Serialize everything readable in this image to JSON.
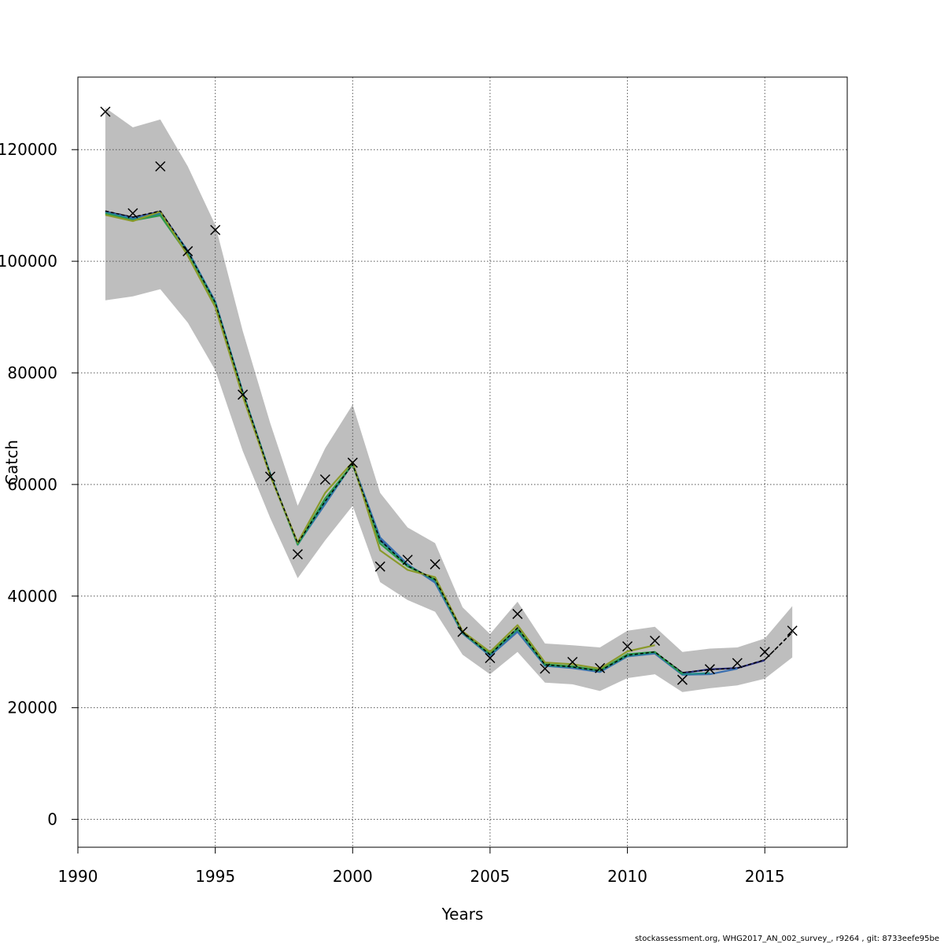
{
  "chart_data": {
    "type": "line",
    "title": "",
    "xlabel": "Years",
    "ylabel": "Catch",
    "xlim": [
      1990,
      2018
    ],
    "ylim": [
      -5000,
      133000
    ],
    "xticks": [
      1990,
      1995,
      2000,
      2005,
      2010,
      2015
    ],
    "yticks": [
      0,
      20000,
      40000,
      60000,
      80000,
      100000,
      120000
    ],
    "grid": true,
    "legend": "none",
    "colors": {
      "band": "#bebebe",
      "observed": "#000000",
      "series": [
        "#000000",
        "#2a2d7c",
        "#3a6fb0",
        "#1f8a8a",
        "#2c9a4a",
        "#8a9a2a"
      ]
    },
    "confidence_band": {
      "x": [
        1991,
        1992,
        1993,
        1994,
        1995,
        1996,
        1997,
        1998,
        1999,
        2000,
        2001,
        2002,
        2003,
        2004,
        2005,
        2006,
        2007,
        2008,
        2009,
        2010,
        2011,
        2012,
        2013,
        2014,
        2015,
        2016
      ],
      "lower": [
        93000,
        93700,
        95000,
        89000,
        80500,
        66000,
        54000,
        43200,
        50000,
        56200,
        42500,
        39300,
        37200,
        29500,
        26000,
        30000,
        24500,
        24200,
        23000,
        25300,
        26000,
        22800,
        23500,
        24000,
        25200,
        29000
      ],
      "upper": [
        127500,
        124000,
        125400,
        117000,
        106500,
        87500,
        71000,
        56200,
        66500,
        74300,
        58500,
        52300,
        49500,
        38000,
        33200,
        39000,
        31500,
        31200,
        30800,
        33800,
        34500,
        30000,
        30600,
        30800,
        32400,
        38200
      ]
    },
    "observed": {
      "x": [
        1991,
        1992,
        1993,
        1994,
        1995,
        1996,
        1997,
        1998,
        1999,
        2000,
        2001,
        2002,
        2003,
        2004,
        2005,
        2006,
        2007,
        2008,
        2009,
        2010,
        2011,
        2012,
        2013,
        2014,
        2015,
        2016
      ],
      "y": [
        126800,
        108600,
        117000,
        101800,
        105600,
        76100,
        61400,
        47500,
        60900,
        63900,
        45300,
        46500,
        45700,
        33600,
        28900,
        36800,
        27000,
        28200,
        27100,
        31000,
        32000,
        25000,
        26900,
        28000,
        30000,
        33800
      ]
    },
    "series": [
      {
        "x": [
          1991,
          1992,
          1993,
          1994,
          1995,
          1996,
          1997,
          1998,
          1999,
          2000,
          2001,
          2002,
          2003,
          2004,
          2005,
          2006,
          2007,
          2008,
          2009,
          2010,
          2011,
          2012,
          2013,
          2014,
          2015,
          2016
        ],
        "values": [
          109000,
          107900,
          109000,
          101800,
          92600,
          76500,
          61800,
          49500,
          57000,
          63600,
          50000,
          45400,
          43000,
          33600,
          29500,
          34300,
          27700,
          27300,
          26600,
          29400,
          30000,
          26300,
          26800,
          27100,
          28600,
          33500
        ]
      },
      {
        "x": [
          1991,
          1992,
          1993,
          1994,
          1995,
          1996,
          1997,
          1998,
          1999,
          2000,
          2001,
          2002,
          2003,
          2004,
          2005,
          2006,
          2007,
          2008,
          2009,
          2010,
          2011,
          2012,
          2013,
          2014,
          2015
        ],
        "values": [
          108900,
          107800,
          108900,
          101800,
          92700,
          76500,
          61800,
          49400,
          56800,
          63700,
          50300,
          45600,
          42700,
          33400,
          29400,
          33800,
          27600,
          27200,
          26500,
          29300,
          29800,
          26200,
          26900,
          27100,
          28500
        ]
      },
      {
        "x": [
          1991,
          1992,
          1993,
          1994,
          1995,
          1996,
          1997,
          1998,
          1999,
          2000,
          2001,
          2002,
          2003,
          2004,
          2005,
          2006,
          2007,
          2008,
          2009,
          2010,
          2011,
          2012,
          2013,
          2014
        ],
        "values": [
          108800,
          107700,
          108700,
          101900,
          92800,
          76600,
          61900,
          49300,
          56500,
          63800,
          50500,
          45700,
          42400,
          33300,
          29300,
          33600,
          27500,
          27100,
          26400,
          29200,
          29700,
          25900,
          26000,
          27000
        ]
      },
      {
        "x": [
          1991,
          1992,
          1993,
          1994,
          1995,
          1996,
          1997,
          1998,
          1999,
          2000,
          2001,
          2002,
          2003,
          2004,
          2005,
          2006,
          2007,
          2008,
          2009,
          2010,
          2011,
          2012,
          2013
        ],
        "values": [
          108700,
          107500,
          108400,
          101700,
          92600,
          76500,
          61900,
          49200,
          56900,
          63700,
          49900,
          45500,
          42800,
          33400,
          29500,
          34000,
          27600,
          27300,
          26600,
          29300,
          29900,
          26000,
          26200
        ]
      },
      {
        "x": [
          1991,
          1992,
          1993,
          1994,
          1995,
          1996,
          1997,
          1998,
          1999,
          2000,
          2001,
          2002,
          2003,
          2004,
          2005,
          2006,
          2007,
          2008,
          2009,
          2010,
          2011,
          2012
        ],
        "values": [
          108500,
          107300,
          108200,
          101200,
          92200,
          76200,
          61700,
          49300,
          57500,
          63600,
          49400,
          45300,
          43000,
          33500,
          29700,
          34200,
          27800,
          27400,
          26700,
          29600,
          30000,
          26100
        ]
      },
      {
        "x": [
          1991,
          1992,
          1993,
          1994,
          1995,
          1996,
          1997,
          1998,
          1999,
          2000,
          2001,
          2002,
          2003,
          2004,
          2005,
          2006,
          2007,
          2008,
          2009,
          2010,
          2011
        ],
        "values": [
          108300,
          107200,
          108900,
          101000,
          91800,
          75800,
          61600,
          49600,
          58500,
          64000,
          48200,
          44700,
          43400,
          33700,
          30000,
          34800,
          28100,
          27800,
          27000,
          30100,
          31200
        ]
      }
    ]
  },
  "footer": "stockassessment.org, WHG2017_AN_002_survey_, r9264 , git: 8733eefe95be"
}
